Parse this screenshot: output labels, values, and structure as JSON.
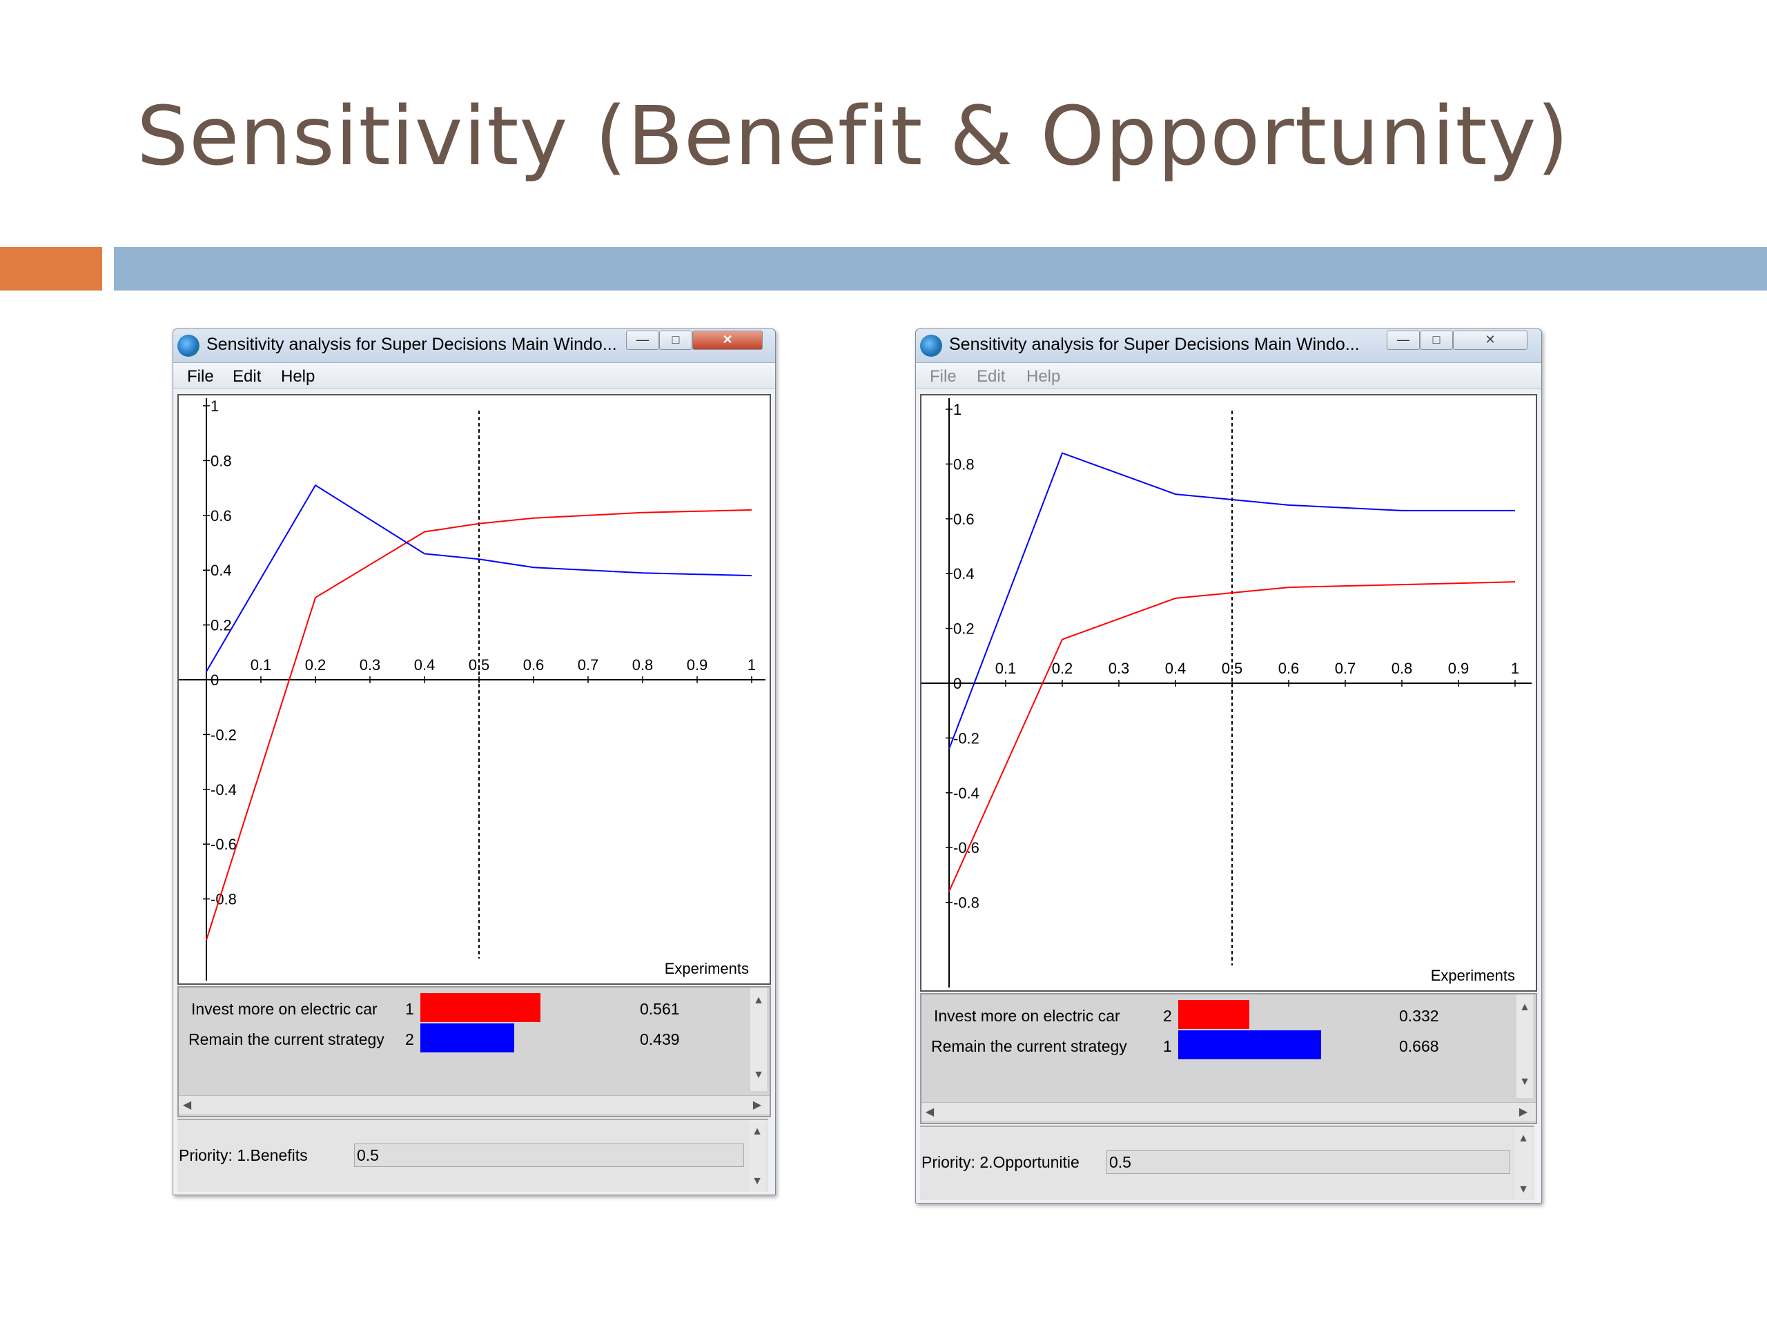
{
  "slide": {
    "title": "Sensitivity (Benefit & Opportunity)"
  },
  "windows": [
    {
      "id": "benefits",
      "title": "Sensitivity analysis for Super Decisions Main Windo...",
      "active": true,
      "menu": [
        "File",
        "Edit",
        "Help"
      ],
      "chart_data": {
        "type": "line",
        "x_ticks": [
          "0.1",
          "0.2",
          "0.3",
          "0.4",
          "0.5",
          "0.6",
          "0.7",
          "0.8",
          "0.9",
          "1"
        ],
        "y_ticks": [
          "1",
          "0.8",
          "0.6",
          "0.4",
          "0.2",
          "0",
          "-0.2",
          "-0.4",
          "-0.6",
          "-0.8"
        ],
        "xlim": [
          0,
          1
        ],
        "ylim": [
          -1,
          1
        ],
        "xlabel": "Experiments",
        "marker_x": 0.5,
        "series": [
          {
            "color": "#ff0000",
            "points": [
              [
                0,
                -0.95
              ],
              [
                0.2,
                0.3
              ],
              [
                0.4,
                0.54
              ],
              [
                0.5,
                0.57
              ],
              [
                0.6,
                0.59
              ],
              [
                0.8,
                0.61
              ],
              [
                1.0,
                0.62
              ]
            ]
          },
          {
            "color": "#0000ff",
            "points": [
              [
                0,
                0.03
              ],
              [
                0.2,
                0.71
              ],
              [
                0.4,
                0.46
              ],
              [
                0.5,
                0.44
              ],
              [
                0.6,
                0.41
              ],
              [
                0.8,
                0.39
              ],
              [
                1.0,
                0.38
              ]
            ]
          }
        ]
      },
      "results": [
        {
          "label": "Invest more on electric car",
          "rank": "1",
          "value": "0.561",
          "fraction": 0.561,
          "color": "#ff0000"
        },
        {
          "label": "Remain the current strategy",
          "rank": "2",
          "value": "0.439",
          "fraction": 0.439,
          "color": "#0000ff"
        }
      ],
      "priority": {
        "label": "Priority: 1.Benefits",
        "value": "0.5"
      }
    },
    {
      "id": "opportunities",
      "title": "Sensitivity analysis for Super Decisions Main Windo...",
      "active": false,
      "menu": [
        "File",
        "Edit",
        "Help"
      ],
      "chart_data": {
        "type": "line",
        "x_ticks": [
          "0.1",
          "0.2",
          "0.3",
          "0.4",
          "0.5",
          "0.6",
          "0.7",
          "0.8",
          "0.9",
          "1"
        ],
        "y_ticks": [
          "1",
          "0.8",
          "0.6",
          "0.4",
          "0.2",
          "0",
          "-0.2",
          "-0.4",
          "-0.6",
          "-0.8"
        ],
        "xlim": [
          0,
          1
        ],
        "ylim": [
          -1,
          1
        ],
        "xlabel": "Experiments",
        "marker_x": 0.5,
        "series": [
          {
            "color": "#ff0000",
            "points": [
              [
                0,
                -0.76
              ],
              [
                0.2,
                0.16
              ],
              [
                0.4,
                0.31
              ],
              [
                0.5,
                0.33
              ],
              [
                0.6,
                0.35
              ],
              [
                0.8,
                0.36
              ],
              [
                1.0,
                0.37
              ]
            ]
          },
          {
            "color": "#0000ff",
            "points": [
              [
                0,
                -0.24
              ],
              [
                0.2,
                0.84
              ],
              [
                0.4,
                0.69
              ],
              [
                0.5,
                0.67
              ],
              [
                0.6,
                0.65
              ],
              [
                0.8,
                0.63
              ],
              [
                1.0,
                0.63
              ]
            ]
          }
        ]
      },
      "results": [
        {
          "label": "Invest more on electric car",
          "rank": "2",
          "value": "0.332",
          "fraction": 0.332,
          "color": "#ff0000"
        },
        {
          "label": "Remain the current strategy",
          "rank": "1",
          "value": "0.668",
          "fraction": 0.668,
          "color": "#0000ff"
        }
      ],
      "priority": {
        "label": "Priority: 2.Opportunitie",
        "value": "0.5"
      }
    }
  ]
}
